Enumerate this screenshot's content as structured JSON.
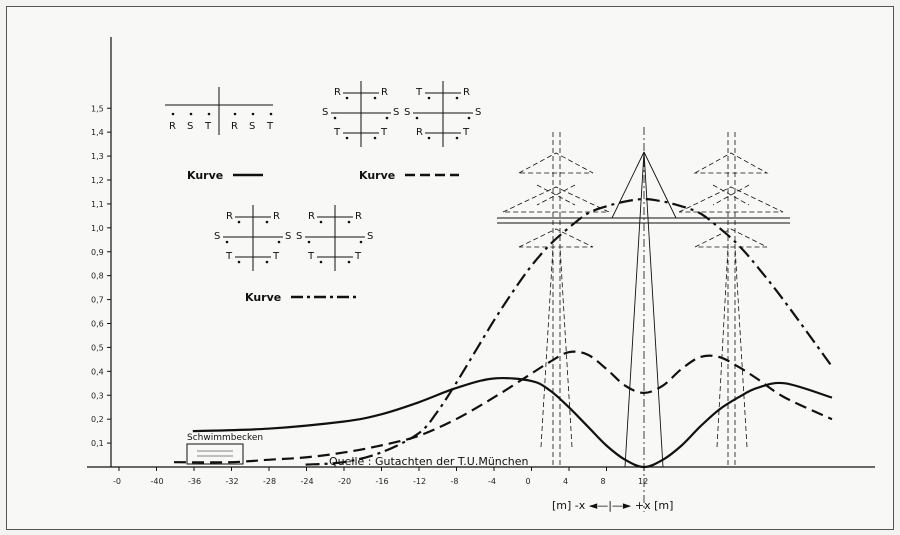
{
  "chart_data": {
    "type": "line",
    "title": "",
    "xlabel": "[m] -x ◄—|—► +x [m]",
    "ylabel": "",
    "x_ticks": [
      "-0",
      "-40",
      "-36",
      "-32",
      "-28",
      "-24",
      "-20",
      "-16",
      "-12",
      "-8",
      "-4",
      "0",
      "4",
      "8",
      "12"
    ],
    "y_ticks": [
      "0,1",
      "0,2",
      "0,3",
      "0,4",
      "0,5",
      "0,6",
      "0,7",
      "0,8",
      "0,9",
      "1,0",
      "1,1",
      "1,2",
      "1,3",
      "1,4",
      "1,5"
    ],
    "ylim": [
      0,
      1.5
    ],
    "series": [
      {
        "name": "Kurve",
        "style": "solid",
        "x": [
          -48,
          -40,
          -32,
          -28,
          -24,
          -20,
          -16,
          -12,
          -10,
          -8,
          -6,
          -4,
          -2,
          0,
          2,
          4,
          6,
          8,
          10,
          12,
          15,
          20
        ],
        "y": [
          0.15,
          0.16,
          0.19,
          0.22,
          0.27,
          0.33,
          0.37,
          0.36,
          0.32,
          0.25,
          0.17,
          0.09,
          0.03,
          0.0,
          0.03,
          0.09,
          0.17,
          0.24,
          0.29,
          0.33,
          0.35,
          0.29
        ]
      },
      {
        "name": "Kurve",
        "style": "dashed",
        "x": [
          -50,
          -44,
          -40,
          -36,
          -32,
          -28,
          -24,
          -20,
          -16,
          -12,
          -10,
          -8,
          -6,
          -4,
          -2,
          0,
          2,
          4,
          6,
          8,
          10,
          12,
          15,
          20
        ],
        "y": [
          0.02,
          0.02,
          0.03,
          0.04,
          0.06,
          0.09,
          0.13,
          0.2,
          0.29,
          0.39,
          0.44,
          0.48,
          0.47,
          0.41,
          0.34,
          0.31,
          0.34,
          0.41,
          0.46,
          0.46,
          0.42,
          0.37,
          0.29,
          0.2
        ]
      },
      {
        "name": "Kurve",
        "style": "dashdot",
        "x": [
          -36,
          -32,
          -28,
          -24,
          -22,
          -20,
          -18,
          -16,
          -14,
          -12,
          -10,
          -8,
          -6,
          -4,
          -2,
          0,
          2,
          4,
          6,
          8,
          10,
          12,
          15,
          20
        ],
        "y": [
          0.01,
          0.02,
          0.06,
          0.14,
          0.23,
          0.35,
          0.48,
          0.61,
          0.73,
          0.84,
          0.93,
          1.0,
          1.06,
          1.09,
          1.11,
          1.12,
          1.11,
          1.09,
          1.06,
          1.0,
          0.93,
          0.84,
          0.69,
          0.42
        ]
      }
    ],
    "grid": false,
    "legend": "top-left"
  },
  "legend": {
    "kurve_label": "Kurve",
    "phases_row": [
      "R",
      "S",
      "T",
      "R",
      "S",
      "T"
    ]
  },
  "arrangements": {
    "dashed": [
      {
        "top": [
          "R",
          "R"
        ],
        "mid": [
          "S",
          "S"
        ],
        "bot": [
          "T",
          "T"
        ]
      },
      {
        "top": [
          "T",
          "R"
        ],
        "mid": [
          "S",
          "S"
        ],
        "bot": [
          "R",
          "T"
        ]
      }
    ],
    "dashdot": [
      {
        "top": [
          "R",
          "R"
        ],
        "mid": [
          "S",
          "S"
        ],
        "bot": [
          "T",
          "T"
        ]
      },
      {
        "top": [
          "R",
          "R"
        ],
        "mid": [
          "S",
          "S"
        ],
        "bot": [
          "T",
          "T"
        ]
      }
    ]
  },
  "annotations": {
    "pool": "Schwimmbecken",
    "source": "Quelle : Gutachten der T.U.München",
    "axis_unit": "[m] -x ◄—|—► +x [m]"
  }
}
